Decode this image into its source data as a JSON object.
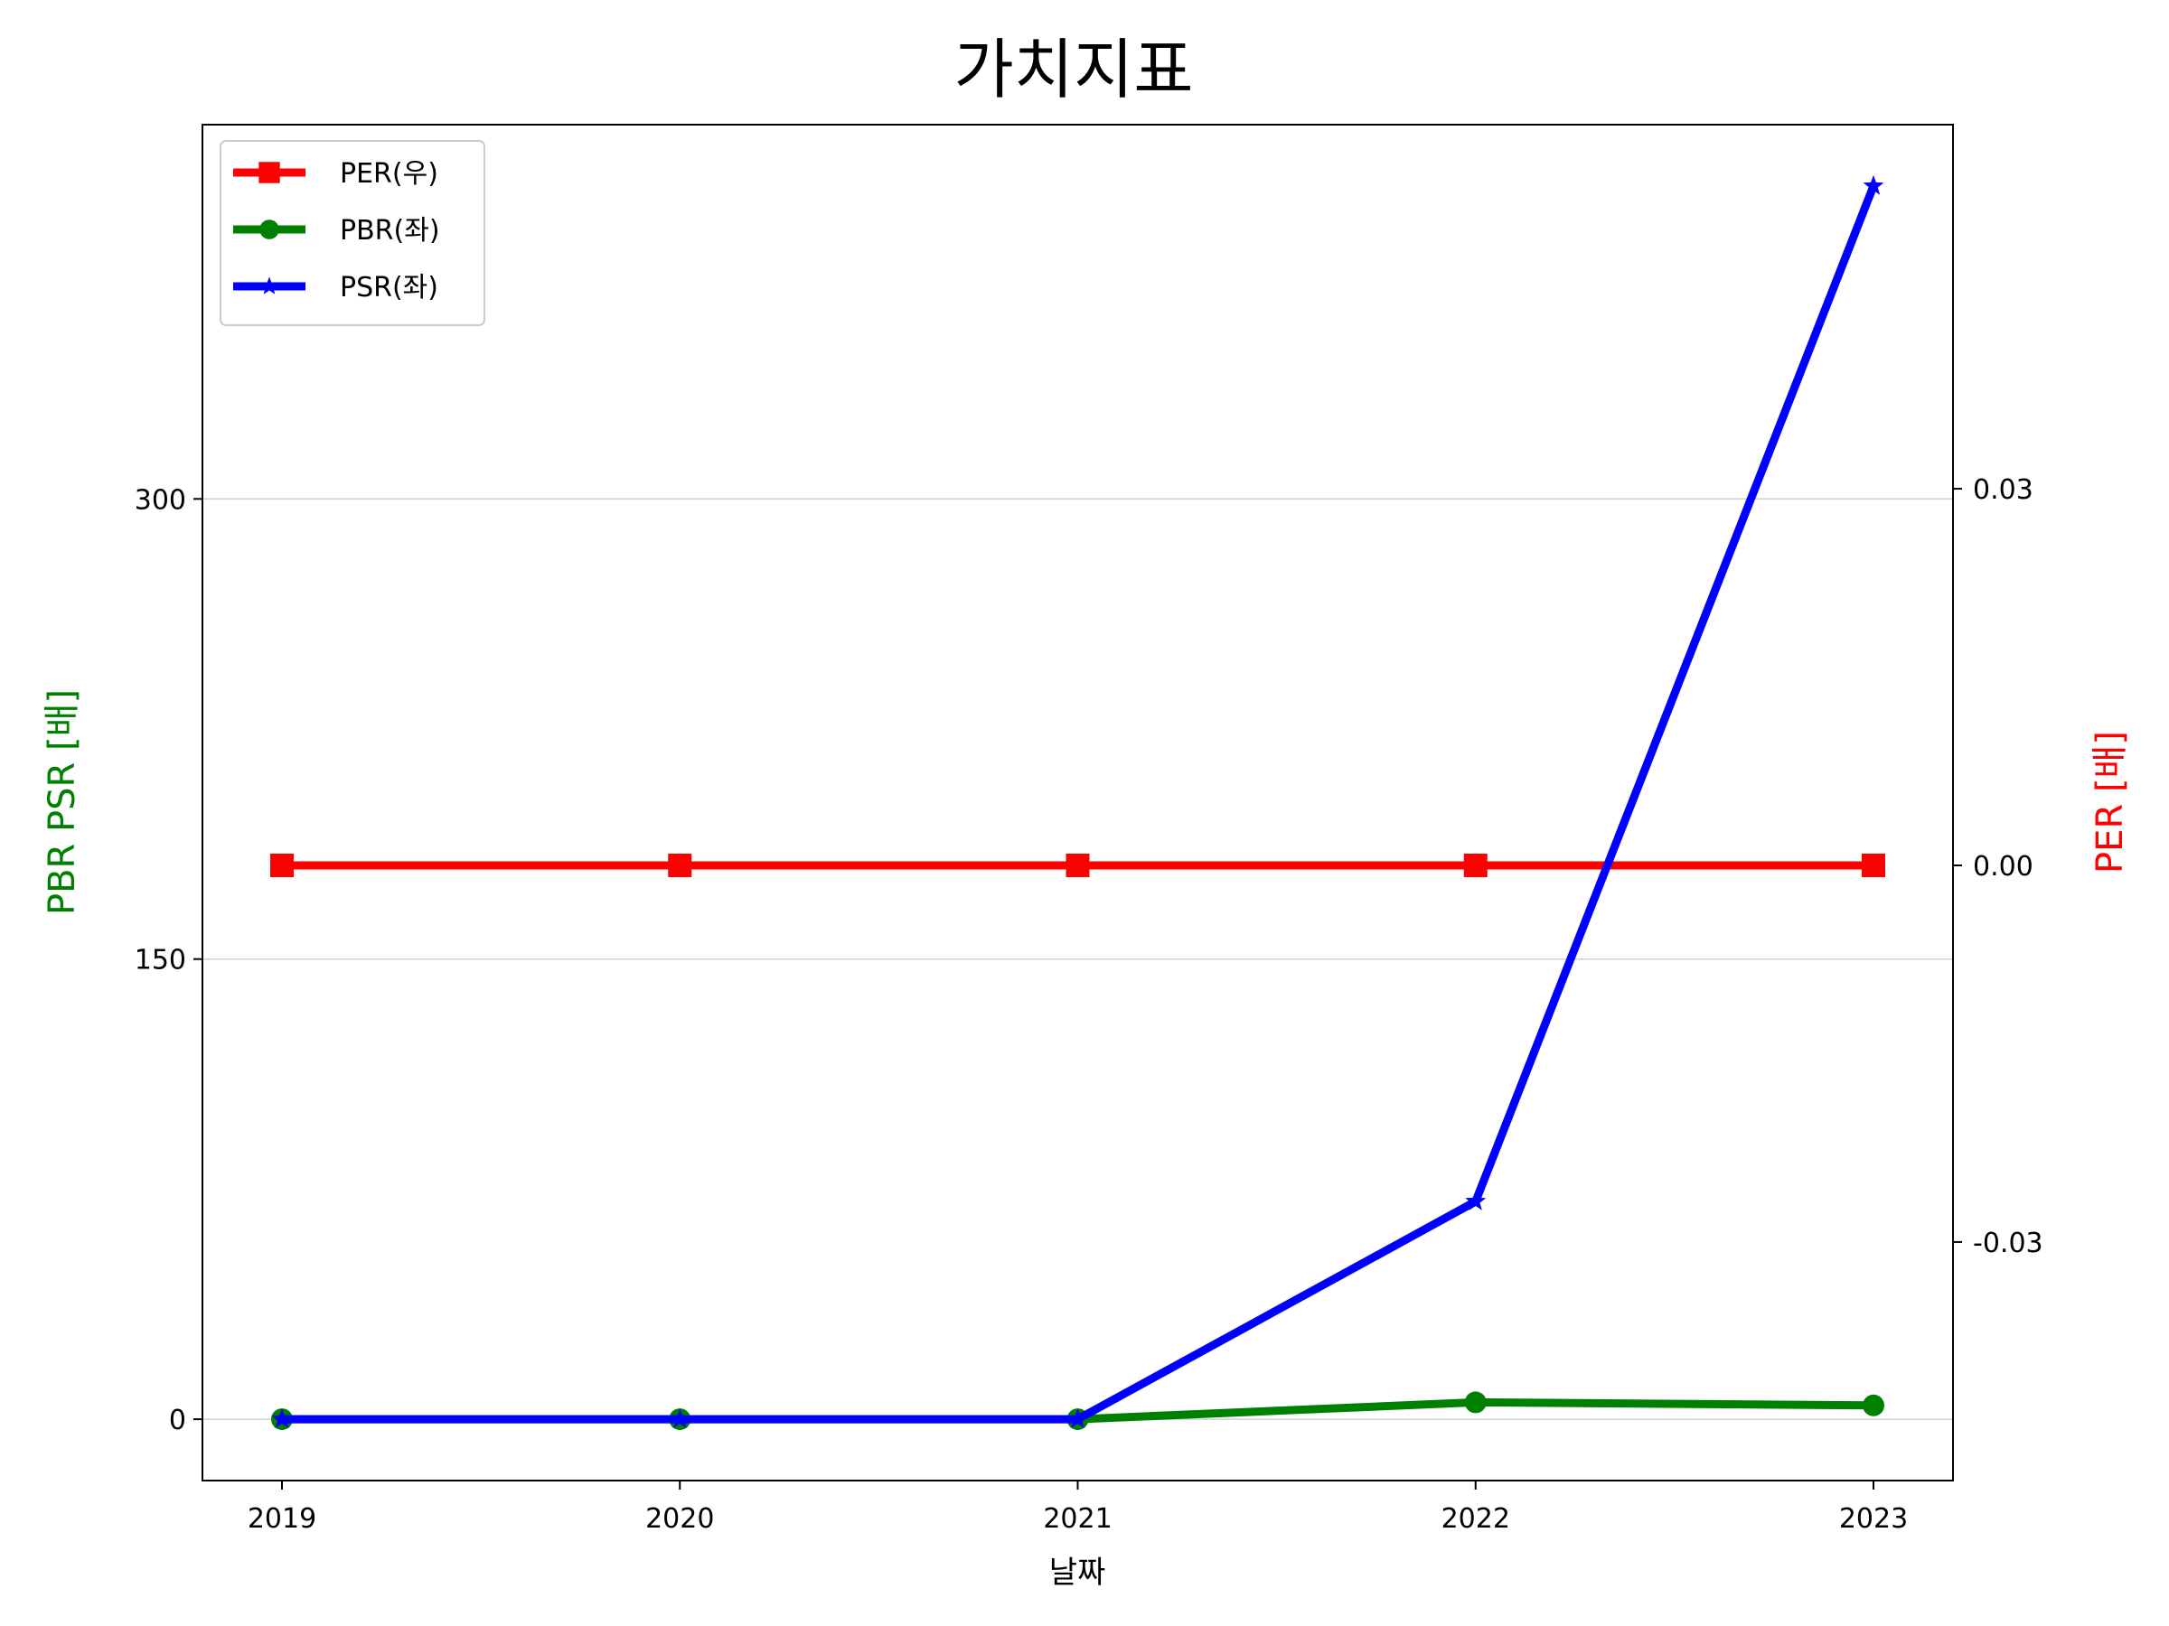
{
  "chart_data": {
    "type": "line",
    "title": "가치지표",
    "xlabel": "날짜",
    "ylabel_left": "PBR PSR [배]",
    "ylabel_right": "PER [배]",
    "x": [
      "2019",
      "2020",
      "2021",
      "2022",
      "2023"
    ],
    "ylim_left": [
      -20,
      422
    ],
    "yticks_left": [
      "0",
      "150",
      "300"
    ],
    "ylim_right": [
      -0.049,
      0.059
    ],
    "yticks_right": [
      "-0.03",
      "0.00",
      "0.03"
    ],
    "grid": "horizontal, left axis",
    "legend_position": "top-left",
    "series": [
      {
        "name": "PER(우)",
        "axis": "right",
        "color": "#ff0000",
        "marker": "square",
        "values": [
          0,
          0,
          0,
          0,
          0
        ]
      },
      {
        "name": "PBR(좌)",
        "axis": "left",
        "color": "#008000",
        "marker": "circle",
        "values": [
          0,
          0,
          0,
          5.5,
          4.5
        ]
      },
      {
        "name": "PSR(좌)",
        "axis": "left",
        "color": "#0000ff",
        "marker": "star",
        "values": [
          0,
          0,
          0,
          71,
          402
        ]
      }
    ]
  }
}
